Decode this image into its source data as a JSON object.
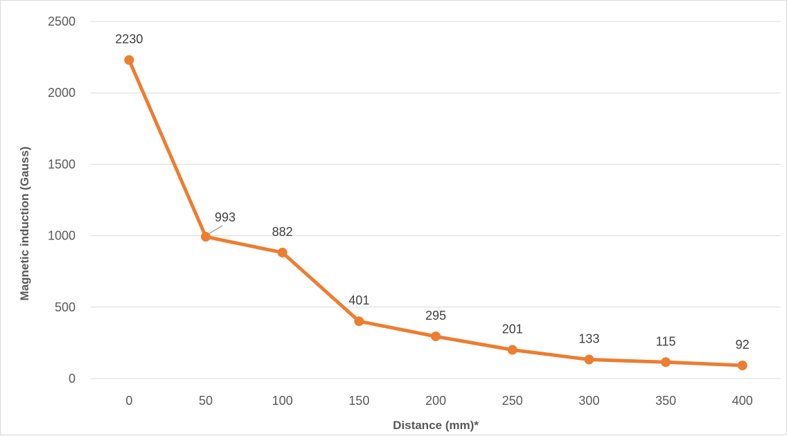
{
  "chart_data": {
    "type": "line",
    "title": "",
    "xlabel": "Distance (mm)*",
    "ylabel": "Magnetic induction (Gauss)",
    "categories": [
      "0",
      "50",
      "100",
      "150",
      "200",
      "250",
      "300",
      "350",
      "400"
    ],
    "series": [
      {
        "values": [
          2230,
          993,
          882,
          401,
          295,
          201,
          133,
          115,
          92
        ],
        "color": "#ED7D31"
      }
    ],
    "data_labels": [
      "2230",
      "993",
      "882",
      "401",
      "295",
      "201",
      "133",
      "115",
      "92"
    ],
    "ylim": [
      0,
      2500
    ],
    "yticks": [
      "0",
      "500",
      "1000",
      "1500",
      "2000",
      "2500"
    ],
    "ytick_values": [
      0,
      500,
      1000,
      1500,
      2000,
      2500
    ],
    "grid": true,
    "legend": "none",
    "colors": {
      "series": "#ED7D31",
      "grid": "#d9d9d9",
      "text": "#595959"
    }
  }
}
